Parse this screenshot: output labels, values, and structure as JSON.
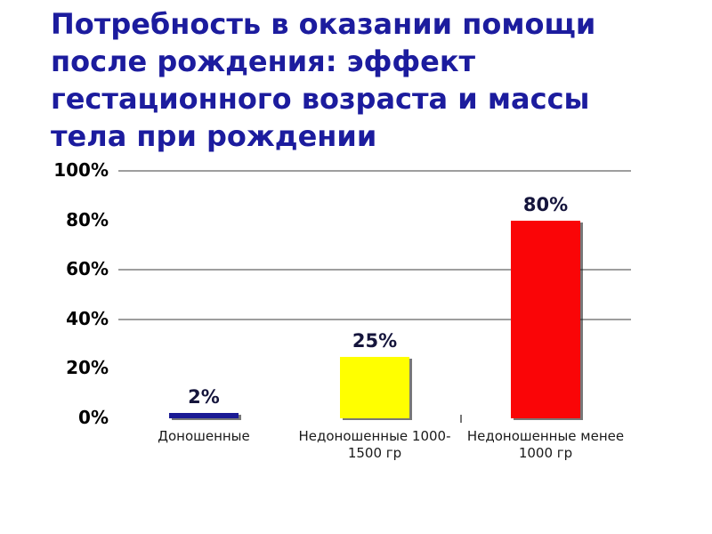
{
  "slide": {
    "title_lines": [
      "Потребность в оказании помощи",
      "после рождения: эффект",
      "гестационного возраста и массы",
      "тела при рождении"
    ],
    "title_color": "#1c1c9e",
    "background": "#ffffff"
  },
  "chart_data": {
    "type": "bar",
    "title": "Потребность в оказании помощи после рождения: эффект гестационного возраста и массы тела при рождении",
    "categories": [
      "Доношенные",
      "Недоношенные 1000-1500 гр",
      "Недоношенные менее 1000 гр"
    ],
    "values": [
      2,
      25,
      80
    ],
    "data_labels": [
      "2%",
      "25%",
      "80%"
    ],
    "bar_colors": [
      "#1a1a94",
      "#ffff00",
      "#fa0507"
    ],
    "y_ticks": [
      {
        "label": "100%",
        "value": 100
      },
      {
        "label": "80%",
        "value": 80
      },
      {
        "label": "60%",
        "value": 60
      },
      {
        "label": "40%",
        "value": 40
      },
      {
        "label": "20%",
        "value": 20
      },
      {
        "label": "0%",
        "value": 0
      }
    ],
    "ylim": [
      0,
      100
    ],
    "gridlines_at": [
      100,
      60,
      40
    ],
    "grid_color": "#9e9e9e",
    "axis_text_color": "#000000",
    "label_color": "#15153c",
    "category_text_color": "#1a1a1a",
    "legend": "none",
    "xlabel": "",
    "ylabel": ""
  }
}
